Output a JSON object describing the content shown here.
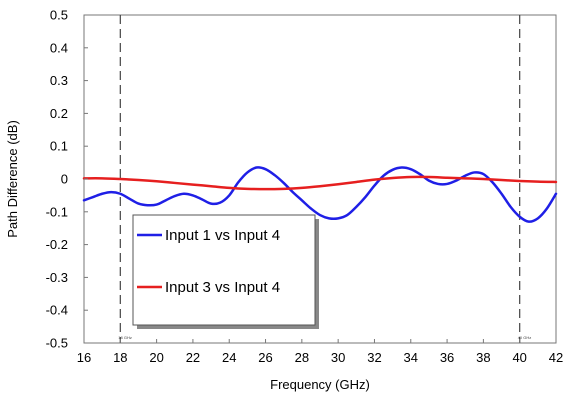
{
  "chart_data": {
    "type": "line",
    "xlabel": "Frequency (GHz)",
    "ylabel": "Path Difference (dB)",
    "xlim": [
      16,
      42
    ],
    "ylim": [
      -0.5,
      0.5
    ],
    "xticks": [
      16,
      18,
      20,
      22,
      24,
      26,
      28,
      30,
      32,
      34,
      36,
      38,
      40,
      42
    ],
    "yticks": [
      -0.5,
      -0.4,
      -0.3,
      -0.2,
      -0.1,
      0,
      0.1,
      0.2,
      0.3,
      0.4,
      0.5
    ],
    "ytick_labels": [
      "-0.5",
      "-0.4",
      "-0.3",
      "-0.2",
      "-0.1",
      "0",
      "0.1",
      "0.2",
      "0.3",
      "0.4",
      "0.5"
    ],
    "grid": false,
    "legend": "lower-left",
    "markers": [
      {
        "x": 18,
        "label": "18 GHz"
      },
      {
        "x": 40,
        "label": "40 GHz"
      }
    ],
    "series": [
      {
        "name": "Input 1 vs Input 4",
        "color": "#1f1fe6",
        "x": [
          16,
          16.5,
          17,
          17.5,
          18,
          18.5,
          19,
          19.5,
          20,
          20.5,
          21,
          21.5,
          22,
          22.5,
          23,
          23.5,
          24,
          24.5,
          25,
          25.5,
          26,
          26.5,
          27,
          27.5,
          28,
          28.5,
          29,
          29.5,
          30,
          30.5,
          31,
          31.5,
          32,
          32.5,
          33,
          33.5,
          34,
          34.5,
          35,
          35.5,
          36,
          36.5,
          37,
          37.5,
          38,
          38.5,
          39,
          39.5,
          40,
          40.5,
          41,
          41.5,
          42
        ],
        "y": [
          -0.065,
          -0.055,
          -0.045,
          -0.04,
          -0.045,
          -0.06,
          -0.075,
          -0.08,
          -0.078,
          -0.065,
          -0.052,
          -0.045,
          -0.05,
          -0.062,
          -0.075,
          -0.072,
          -0.05,
          -0.01,
          0.02,
          0.035,
          0.03,
          0.012,
          -0.012,
          -0.04,
          -0.065,
          -0.09,
          -0.11,
          -0.12,
          -0.12,
          -0.11,
          -0.085,
          -0.055,
          -0.02,
          0.01,
          0.028,
          0.035,
          0.03,
          0.015,
          -0.005,
          -0.015,
          -0.015,
          -0.005,
          0.01,
          0.02,
          0.015,
          -0.01,
          -0.045,
          -0.085,
          -0.115,
          -0.13,
          -0.12,
          -0.09,
          -0.045
        ]
      },
      {
        "name": "Input 3 vs Input 4",
        "color": "#e61f1f",
        "x": [
          16,
          17,
          18,
          19,
          20,
          21,
          22,
          23,
          24,
          25,
          26,
          27,
          28,
          29,
          30,
          31,
          32,
          33,
          34,
          35,
          36,
          37,
          38,
          39,
          40,
          41,
          42
        ],
        "y": [
          0.002,
          0.002,
          0.0,
          -0.003,
          -0.007,
          -0.012,
          -0.017,
          -0.022,
          -0.027,
          -0.03,
          -0.031,
          -0.03,
          -0.027,
          -0.022,
          -0.016,
          -0.009,
          -0.002,
          0.003,
          0.006,
          0.006,
          0.004,
          0.002,
          0.0,
          -0.003,
          -0.006,
          -0.008,
          -0.009
        ]
      }
    ]
  }
}
